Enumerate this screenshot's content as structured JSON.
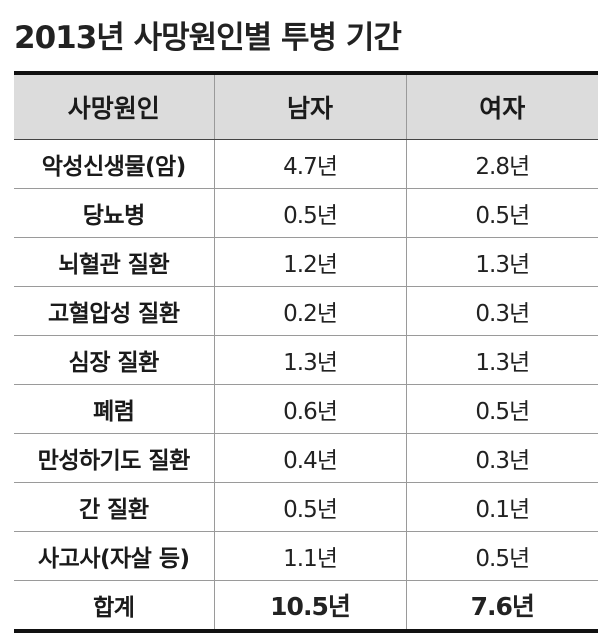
{
  "title": "2013년 사망원인별 투병 기간",
  "table": {
    "headers": [
      "사망원인",
      "남자",
      "여자"
    ],
    "rows": [
      {
        "cause": "악성신생물(암)",
        "male": "4.7년",
        "female": "2.8년"
      },
      {
        "cause": "당뇨병",
        "male": "0.5년",
        "female": "0.5년"
      },
      {
        "cause": "뇌혈관 질환",
        "male": "1.2년",
        "female": "1.3년"
      },
      {
        "cause": "고혈압성 질환",
        "male": "0.2년",
        "female": "0.3년"
      },
      {
        "cause": "심장 질환",
        "male": "1.3년",
        "female": "1.3년"
      },
      {
        "cause": "폐렴",
        "male": "0.6년",
        "female": "0.5년"
      },
      {
        "cause": "만성하기도 질환",
        "male": "0.4년",
        "female": "0.3년"
      },
      {
        "cause": "간 질환",
        "male": "0.5년",
        "female": "0.1년"
      },
      {
        "cause": "사고사(자살 등)",
        "male": "1.1년",
        "female": "0.5년"
      }
    ],
    "total": {
      "cause": "합계",
      "male": "10.5년",
      "female": "7.6년"
    }
  }
}
